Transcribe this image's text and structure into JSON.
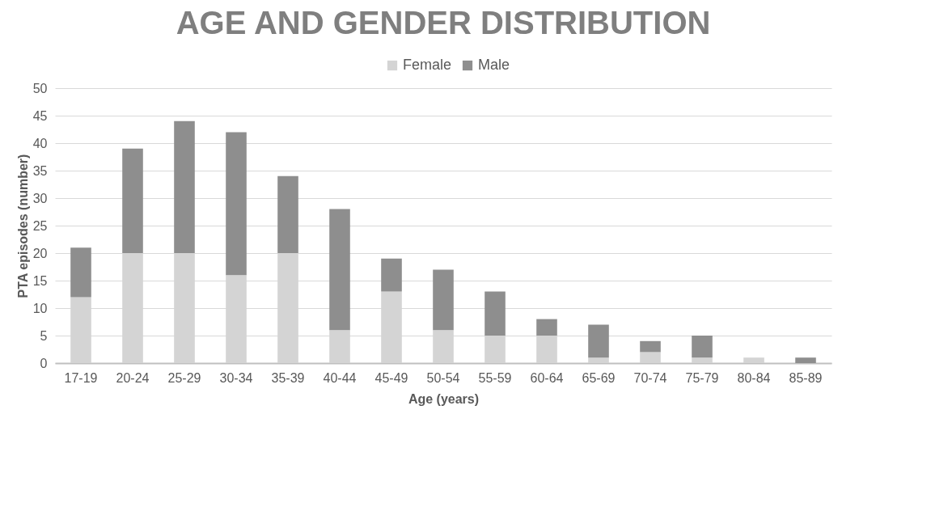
{
  "chart_data": {
    "type": "bar",
    "title": "AGE AND GENDER DISTRIBUTION",
    "xlabel": "Age (years)",
    "ylabel": "PTA episodes (number)",
    "categories": [
      "17-19",
      "20-24",
      "25-29",
      "30-34",
      "35-39",
      "40-44",
      "45-49",
      "50-54",
      "55-59",
      "60-64",
      "65-69",
      "70-74",
      "75-79",
      "80-84",
      "85-89"
    ],
    "series": [
      {
        "name": "Female",
        "color": "#d4d4d4",
        "values": [
          12,
          20,
          20,
          16,
          20,
          6,
          13,
          6,
          5,
          5,
          1,
          2,
          1,
          1,
          0
        ]
      },
      {
        "name": "Male",
        "color": "#8e8e8e",
        "values": [
          9,
          19,
          24,
          26,
          14,
          22,
          6,
          11,
          8,
          3,
          6,
          2,
          4,
          0,
          1
        ]
      }
    ],
    "stacked": true,
    "ylim": [
      0,
      50
    ],
    "yticks": [
      0,
      5,
      10,
      15,
      20,
      25,
      30,
      35,
      40,
      45,
      50
    ],
    "grid": "y",
    "legend": "top"
  }
}
